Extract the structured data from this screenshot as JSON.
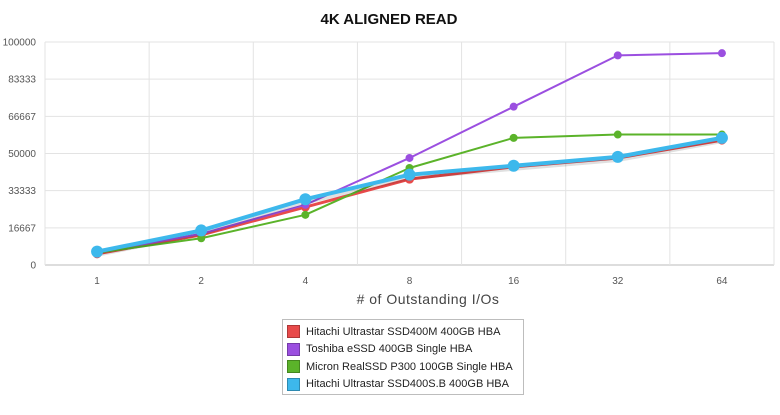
{
  "chart_data": {
    "type": "line",
    "title": "4K ALIGNED READ",
    "xlabel": "# of Outstanding I/Os",
    "ylabel": "",
    "categories": [
      "1",
      "2",
      "4",
      "8",
      "16",
      "32",
      "64"
    ],
    "y_ticks": [
      "0",
      "16667",
      "33333",
      "50000",
      "66667",
      "83333",
      "100000"
    ],
    "ylim": [
      0,
      100000
    ],
    "grid": true,
    "legend_position": "bottom",
    "series": [
      {
        "name": "Hitachi Ultrastar SSD400M 400GB HBA",
        "color": "#e84a4a",
        "values": [
          5000,
          13500,
          26000,
          38500,
          44000,
          48000,
          56000
        ]
      },
      {
        "name": "Toshiba eSSD 400GB Single HBA",
        "color": "#9b4fe0",
        "values": [
          5500,
          14000,
          27000,
          48000,
          71000,
          94000,
          95000
        ]
      },
      {
        "name": "Micron RealSSD P300 100GB Single HBA",
        "color": "#5bb32a",
        "values": [
          5500,
          12000,
          22500,
          43500,
          57000,
          58500,
          58500
        ]
      },
      {
        "name": "Hitachi Ultrastar SSD400S.B 400GB HBA",
        "color": "#3db8ec",
        "values": [
          6000,
          15500,
          29500,
          40500,
          44500,
          48500,
          57000
        ]
      }
    ]
  }
}
